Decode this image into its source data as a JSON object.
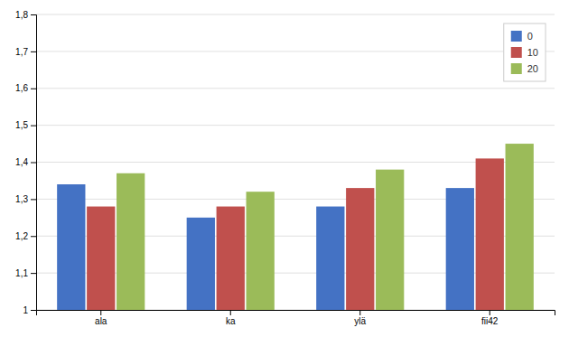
{
  "chart_data": {
    "type": "bar",
    "categories": [
      "ala",
      "ka",
      "ylä",
      "fii42"
    ],
    "series": [
      {
        "name": "0",
        "color": "#4472C4",
        "values": [
          1.34,
          1.25,
          1.28,
          1.33
        ]
      },
      {
        "name": "10",
        "color": "#C0504D",
        "values": [
          1.28,
          1.28,
          1.33,
          1.41
        ]
      },
      {
        "name": "20",
        "color": "#9BBB59",
        "values": [
          1.37,
          1.32,
          1.38,
          1.45
        ]
      }
    ],
    "ylim": [
      1.0,
      1.8
    ],
    "yticks": [
      1,
      {
        "value": 1.1,
        "label": "1,1"
      },
      {
        "value": 1.2,
        "label": "1,2"
      },
      {
        "value": 1.3,
        "label": "1,3"
      },
      {
        "value": 1.4,
        "label": "1,4"
      },
      {
        "value": 1.5,
        "label": "1,5"
      },
      {
        "value": 1.6,
        "label": "1,6"
      },
      {
        "value": 1.7,
        "label": "1,7"
      },
      {
        "value": 1.8,
        "label": "1,8"
      }
    ],
    "grid": true,
    "legend": "upper right"
  }
}
